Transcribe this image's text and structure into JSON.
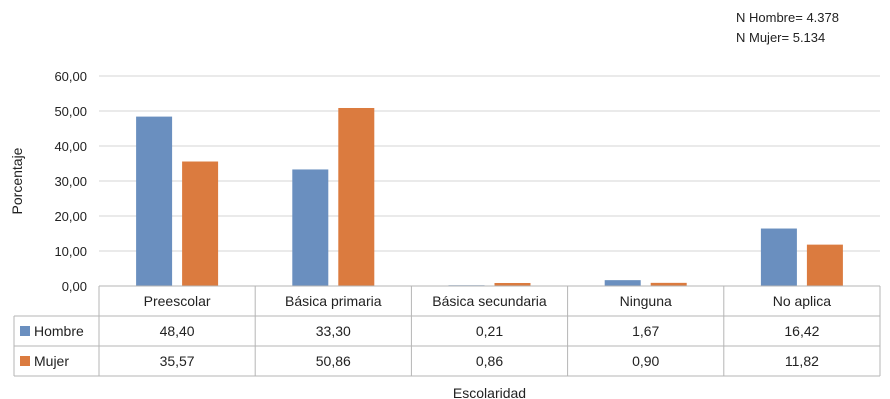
{
  "annotations": [
    "N Hombre= 4.378",
    "N Mujer= 5.134"
  ],
  "chart_data": {
    "type": "bar",
    "title": "",
    "xlabel": "Escolaridad",
    "ylabel": "Porcentaje",
    "ylim": [
      0,
      60
    ],
    "yticks": [
      "0,00",
      "10,00",
      "20,00",
      "30,00",
      "40,00",
      "50,00",
      "60,00"
    ],
    "categories": [
      "Preescolar",
      "Básica primaria",
      "Básica secundaria",
      "Ninguna",
      "No aplica"
    ],
    "series": [
      {
        "name": "Hombre",
        "color": "#6a8fbf",
        "values": [
          48.4,
          33.3,
          0.21,
          1.67,
          16.42
        ],
        "labels": [
          "48,40",
          "33,30",
          "0,21",
          "1,67",
          "16,42"
        ]
      },
      {
        "name": "Mujer",
        "color": "#db7b3f",
        "values": [
          35.57,
          50.86,
          0.86,
          0.9,
          11.82
        ],
        "labels": [
          "35,57",
          "50,86",
          "0,86",
          "0,90",
          "11,82"
        ]
      }
    ],
    "grid": true,
    "legend": "data-table"
  }
}
